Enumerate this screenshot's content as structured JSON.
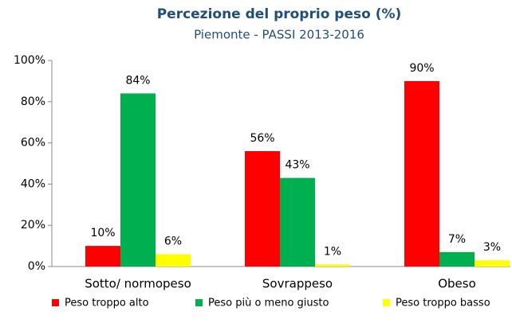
{
  "chart_data": {
    "type": "bar",
    "title": "Percezione del proprio peso (%)",
    "subtitle": "Piemonte - PASSI 2013-2016",
    "categories": [
      "Sotto/ normopeso",
      "Sovrappeso",
      "Obeso"
    ],
    "series": [
      {
        "name": "Peso troppo alto",
        "color": "#ff0000",
        "values": [
          10,
          56,
          90
        ],
        "value_labels": [
          "10%",
          "56%",
          "90%"
        ]
      },
      {
        "name": "Peso più o meno giusto",
        "color": "#00b050",
        "values": [
          84,
          43,
          7
        ],
        "value_labels": [
          "84%",
          "43%",
          "7%"
        ]
      },
      {
        "name": "Peso troppo basso",
        "color": "#ffff00",
        "values": [
          6,
          1,
          3
        ],
        "value_labels": [
          "6%",
          "1%",
          "3%"
        ]
      }
    ],
    "ylim": [
      0,
      100
    ],
    "yticks": [
      {
        "value": 0,
        "label": "0%"
      },
      {
        "value": 20,
        "label": "20%"
      },
      {
        "value": 40,
        "label": "40%"
      },
      {
        "value": 60,
        "label": "60%"
      },
      {
        "value": 80,
        "label": "80%"
      },
      {
        "value": 100,
        "label": "100%"
      }
    ],
    "grid": false,
    "legend": "bottom"
  }
}
